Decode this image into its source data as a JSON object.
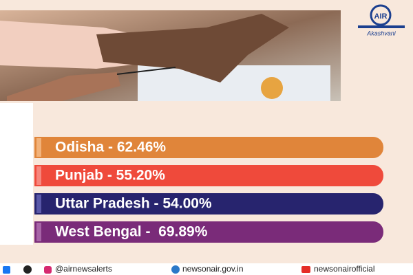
{
  "header": {
    "logo_text": "Akashvani"
  },
  "items": [
    "Odisha - 62.46%",
    "Punjab - 55.20%",
    "Uttar Pradesh - 54.00%",
    "West Bengal -  69.89%"
  ],
  "footer": {
    "links": [
      "@airnewsalerts",
      "newsonair.gov.in",
      "newsonairofficial"
    ]
  }
}
